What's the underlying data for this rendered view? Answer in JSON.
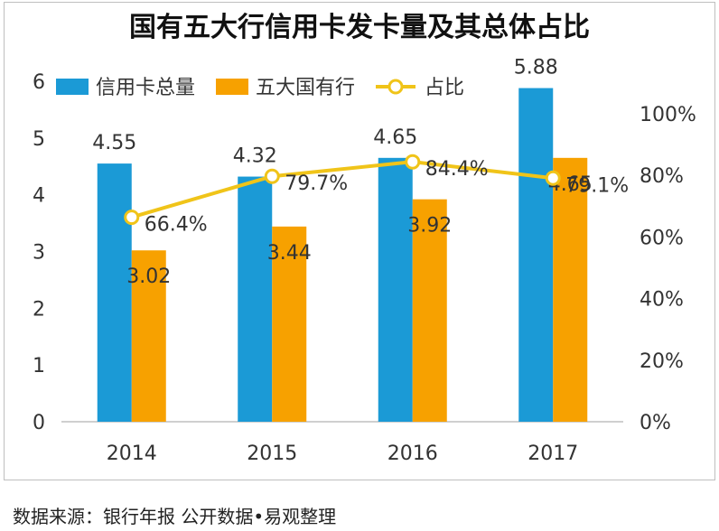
{
  "source_note": "数据来源：银行年报 公开数据•易观整理",
  "chart_data": {
    "type": "bar",
    "title": "国有五大行信用卡发卡量及其总体占比",
    "categories": [
      "2014",
      "2015",
      "2016",
      "2017"
    ],
    "series": [
      {
        "name": "信用卡总量",
        "type": "bar",
        "axis": "left",
        "color": "#1b9ad6",
        "values": [
          4.55,
          4.32,
          4.65,
          5.88
        ],
        "labels": [
          "4.55",
          "4.32",
          "4.65",
          "5.88"
        ]
      },
      {
        "name": "五大国有行",
        "type": "bar",
        "axis": "left",
        "color": "#f7a100",
        "values": [
          3.02,
          3.44,
          3.92,
          4.65
        ],
        "labels": [
          "3.02",
          "3.44",
          "3.92",
          "4.65"
        ]
      },
      {
        "name": "占比",
        "type": "line",
        "axis": "right",
        "color": "#f0c419",
        "values": [
          66.4,
          79.7,
          84.4,
          79.1
        ],
        "labels": [
          "66.4%",
          "79.7%",
          "84.4%",
          "79.1%"
        ]
      }
    ],
    "y_left": {
      "range": [
        0,
        6
      ],
      "ticks": [
        "0",
        "1",
        "2",
        "3",
        "4",
        "5",
        "6"
      ]
    },
    "y_right": {
      "range": [
        0,
        100
      ],
      "ticks": [
        "0%",
        "20%",
        "40%",
        "60%",
        "80%",
        "100%"
      ]
    },
    "legend_position": "top",
    "grid": false
  }
}
